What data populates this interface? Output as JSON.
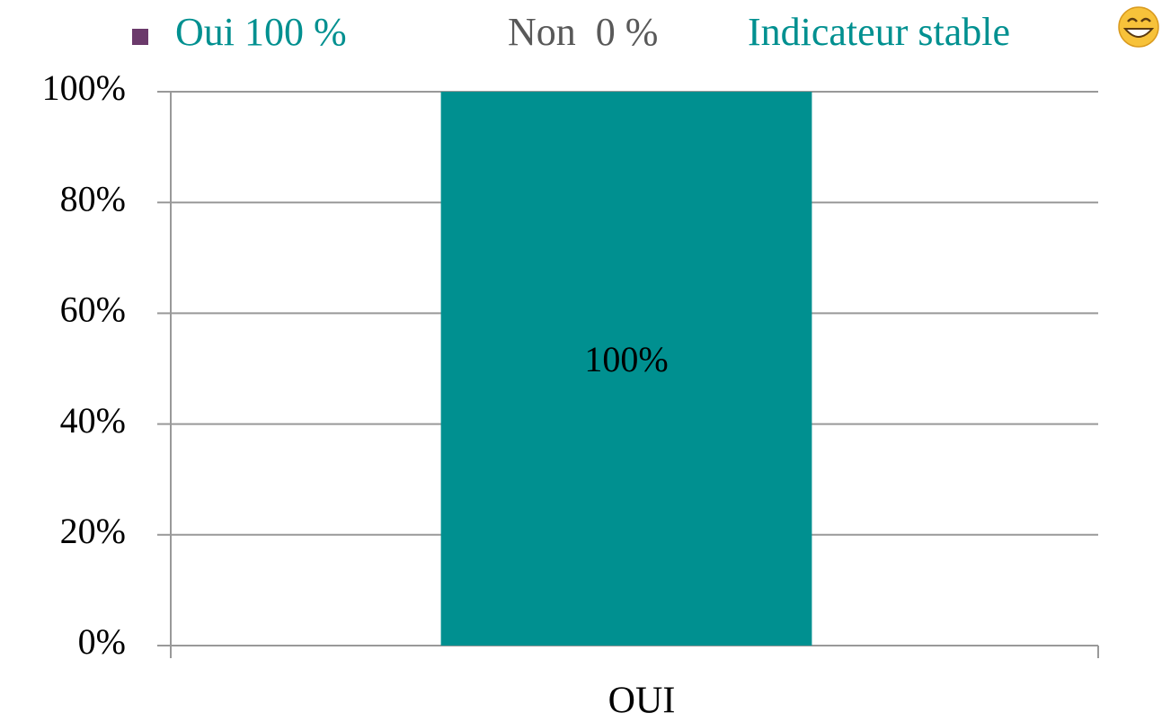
{
  "chart_data": {
    "type": "bar",
    "annotations": [
      {
        "text": "Oui 100 %",
        "color": "#009090"
      },
      {
        "text": "Non  0 %",
        "color": "#595959"
      },
      {
        "text": "Indicateur stable",
        "color": "#009090"
      }
    ],
    "categories": [
      "OUI"
    ],
    "values": [
      100
    ],
    "value_labels": [
      "100%"
    ],
    "color": "#009090",
    "ylim": [
      0,
      100
    ],
    "yticks": [
      {
        "value": 0,
        "label": "0%"
      },
      {
        "value": 20,
        "label": "20%"
      },
      {
        "value": 40,
        "label": "40%"
      },
      {
        "value": 60,
        "label": "60%"
      },
      {
        "value": 80,
        "label": "80%"
      },
      {
        "value": 100,
        "label": "100%"
      }
    ],
    "grid": true
  }
}
